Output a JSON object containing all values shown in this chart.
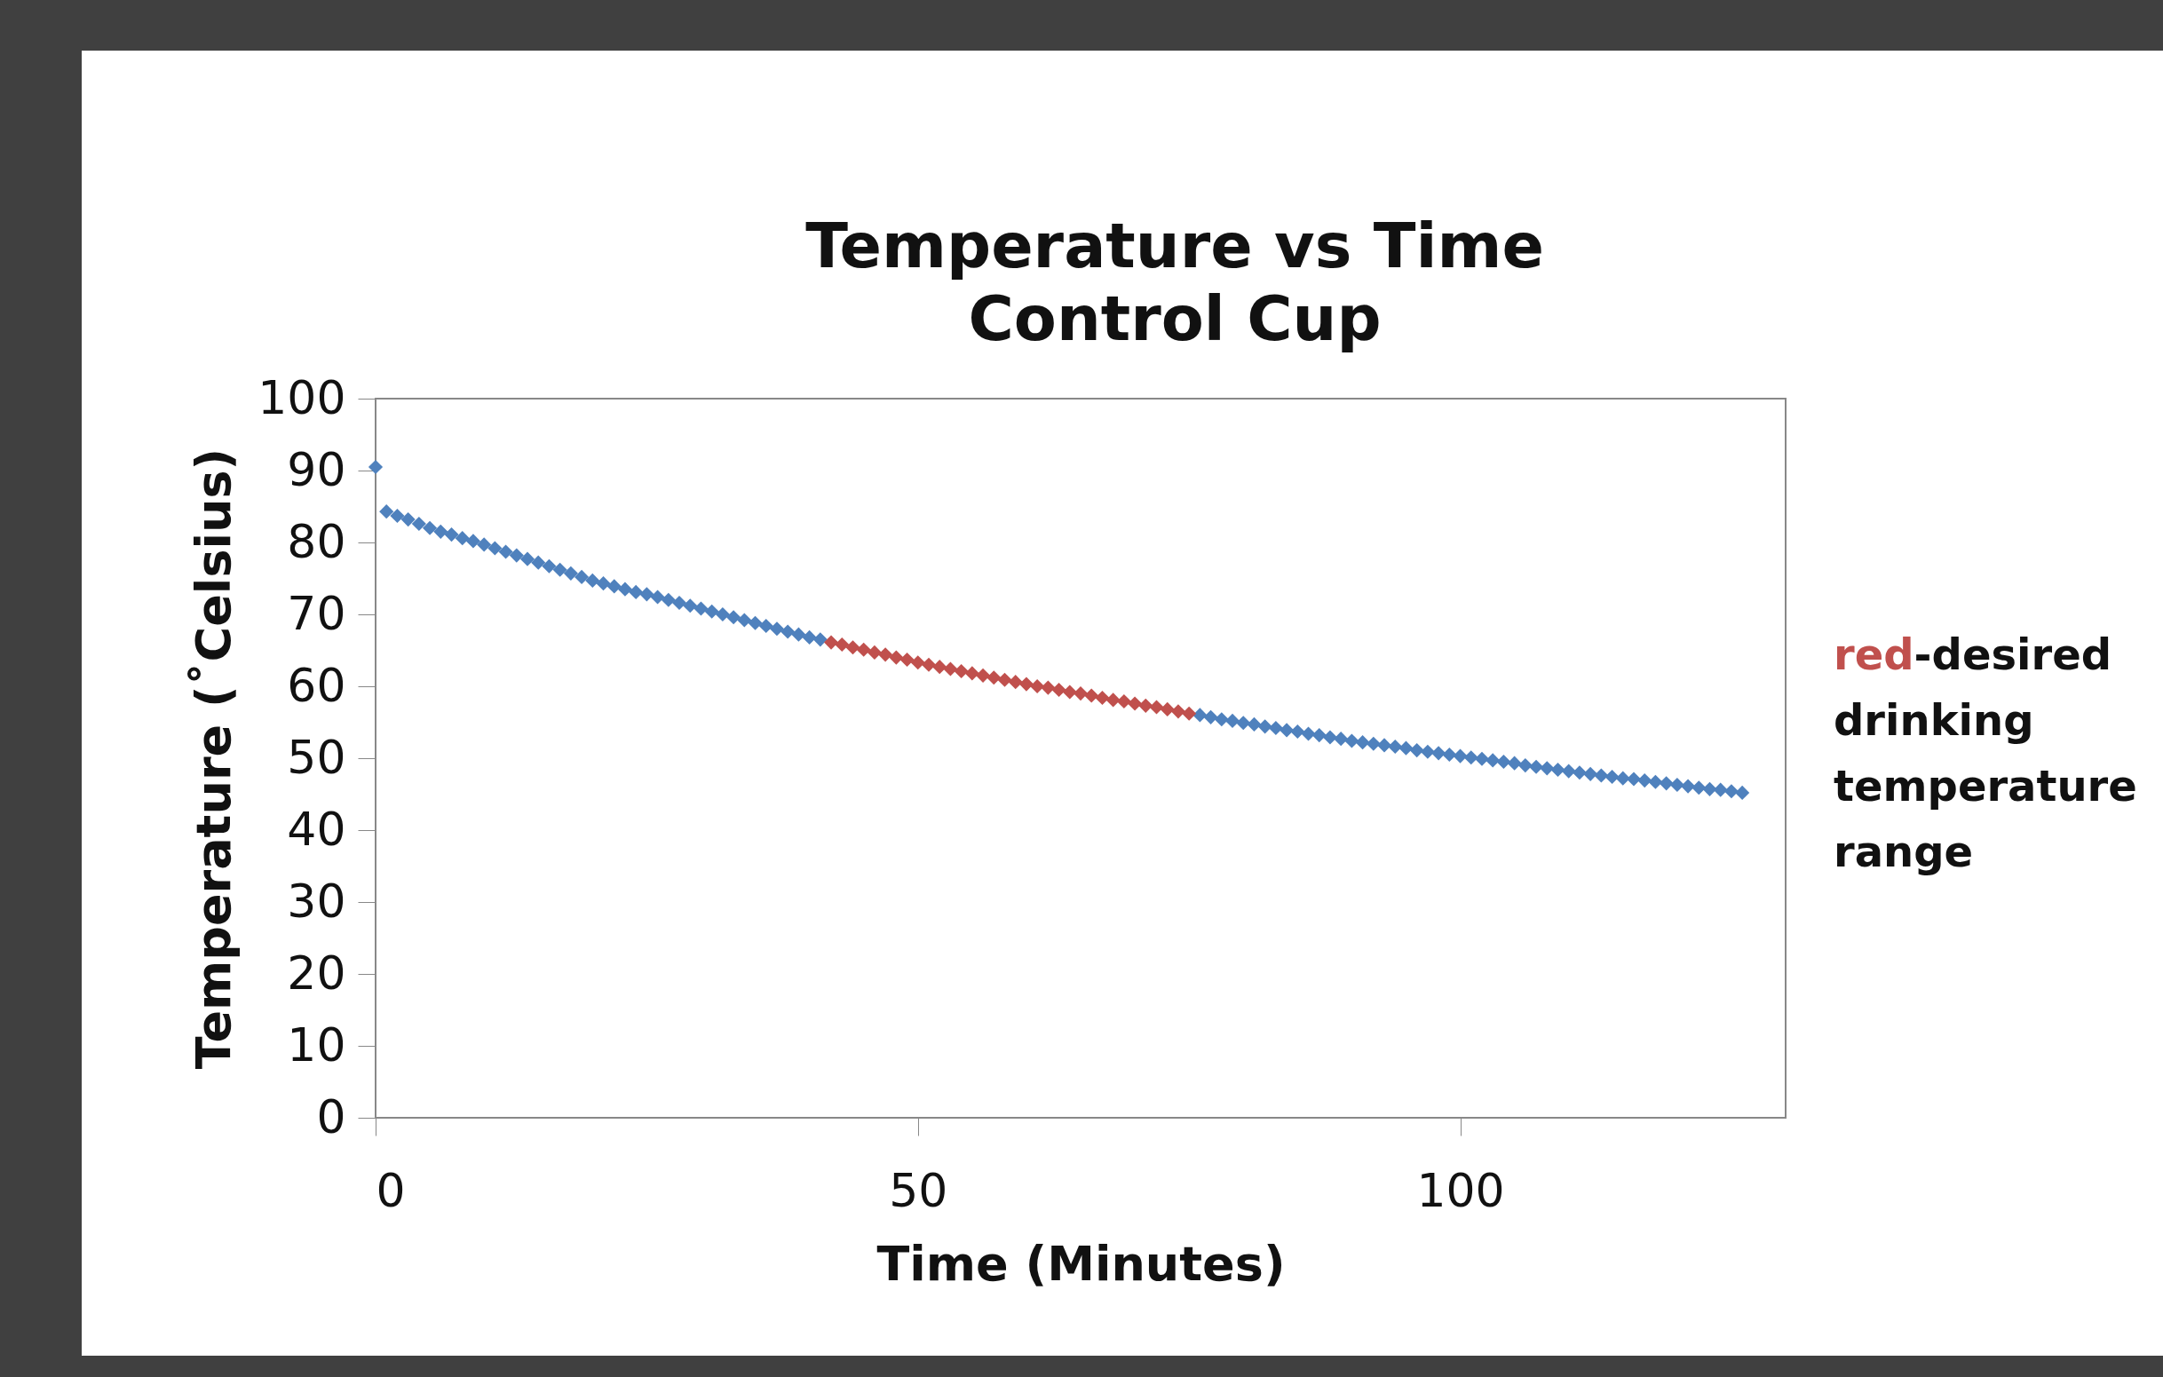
{
  "chart_data": {
    "type": "scatter",
    "title": "Temperature vs Time",
    "subtitle": "Control Cup",
    "xlabel": "Time (Minutes)",
    "ylabel": "Temperature (˚Celsius)",
    "xlim": [
      0,
      130
    ],
    "xticks": [
      0,
      50,
      100
    ],
    "ylim": [
      0,
      100
    ],
    "yticks": [
      0,
      10,
      20,
      30,
      40,
      50,
      60,
      70,
      80,
      90,
      100
    ],
    "grid": false,
    "marker": "diamond",
    "annotations": [
      "red-desired drinking temperature range"
    ],
    "series": [
      {
        "color": "#4f81bd",
        "x": [
          0,
          1,
          2,
          3,
          4,
          5,
          6,
          7,
          8,
          9,
          10,
          11,
          12,
          13,
          14,
          15,
          16,
          17,
          18,
          19,
          20,
          21,
          22,
          23,
          24,
          25,
          26,
          27,
          28,
          29,
          30,
          31,
          32,
          33,
          34,
          35,
          36,
          37,
          38,
          39,
          40,
          41,
          76,
          77,
          78,
          79,
          80,
          81,
          82,
          83,
          84,
          85,
          86,
          87,
          88,
          89,
          90,
          91,
          92,
          93,
          94,
          95,
          96,
          97,
          98,
          99,
          100,
          101,
          102,
          103,
          104,
          105,
          106,
          107,
          108,
          109,
          110,
          111,
          112,
          113,
          114,
          115,
          116,
          117,
          118,
          119,
          120,
          121,
          122,
          123,
          124,
          125,
          126
        ],
        "values": [
          90.5,
          84.3,
          83.7,
          83.2,
          82.6,
          82.0,
          81.5,
          81.1,
          80.6,
          80.2,
          79.7,
          79.2,
          78.7,
          78.2,
          77.7,
          77.2,
          76.7,
          76.2,
          75.7,
          75.2,
          74.7,
          74.3,
          73.9,
          73.5,
          73.1,
          72.8,
          72.4,
          72.0,
          71.6,
          71.2,
          70.8,
          70.4,
          70.0,
          69.6,
          69.2,
          68.8,
          68.4,
          68.0,
          67.6,
          67.2,
          66.8,
          66.5,
          56.0,
          55.7,
          55.4,
          55.2,
          54.9,
          54.7,
          54.4,
          54.2,
          53.9,
          53.7,
          53.4,
          53.2,
          52.9,
          52.7,
          52.4,
          52.2,
          52.0,
          51.8,
          51.6,
          51.4,
          51.1,
          50.9,
          50.7,
          50.5,
          50.3,
          50.1,
          49.9,
          49.7,
          49.5,
          49.3,
          49.0,
          48.8,
          48.6,
          48.4,
          48.2,
          48.0,
          47.8,
          47.6,
          47.4,
          47.2,
          47.1,
          46.9,
          46.7,
          46.5,
          46.3,
          46.1,
          45.9,
          45.7,
          45.6,
          45.4,
          45.2
        ]
      },
      {
        "color": "#c0504d",
        "x": [
          42,
          43,
          44,
          45,
          46,
          47,
          48,
          49,
          50,
          51,
          52,
          53,
          54,
          55,
          56,
          57,
          58,
          59,
          60,
          61,
          62,
          63,
          64,
          65,
          66,
          67,
          68,
          69,
          70,
          71,
          72,
          73,
          74,
          75
        ],
        "values": [
          66.1,
          65.8,
          65.4,
          65.1,
          64.7,
          64.4,
          64.0,
          63.7,
          63.3,
          63.0,
          62.7,
          62.4,
          62.1,
          61.8,
          61.5,
          61.2,
          60.9,
          60.6,
          60.3,
          60.0,
          59.8,
          59.5,
          59.2,
          59.0,
          58.7,
          58.4,
          58.1,
          57.9,
          57.6,
          57.3,
          57.1,
          56.8,
          56.5,
          56.2
        ]
      }
    ]
  }
}
